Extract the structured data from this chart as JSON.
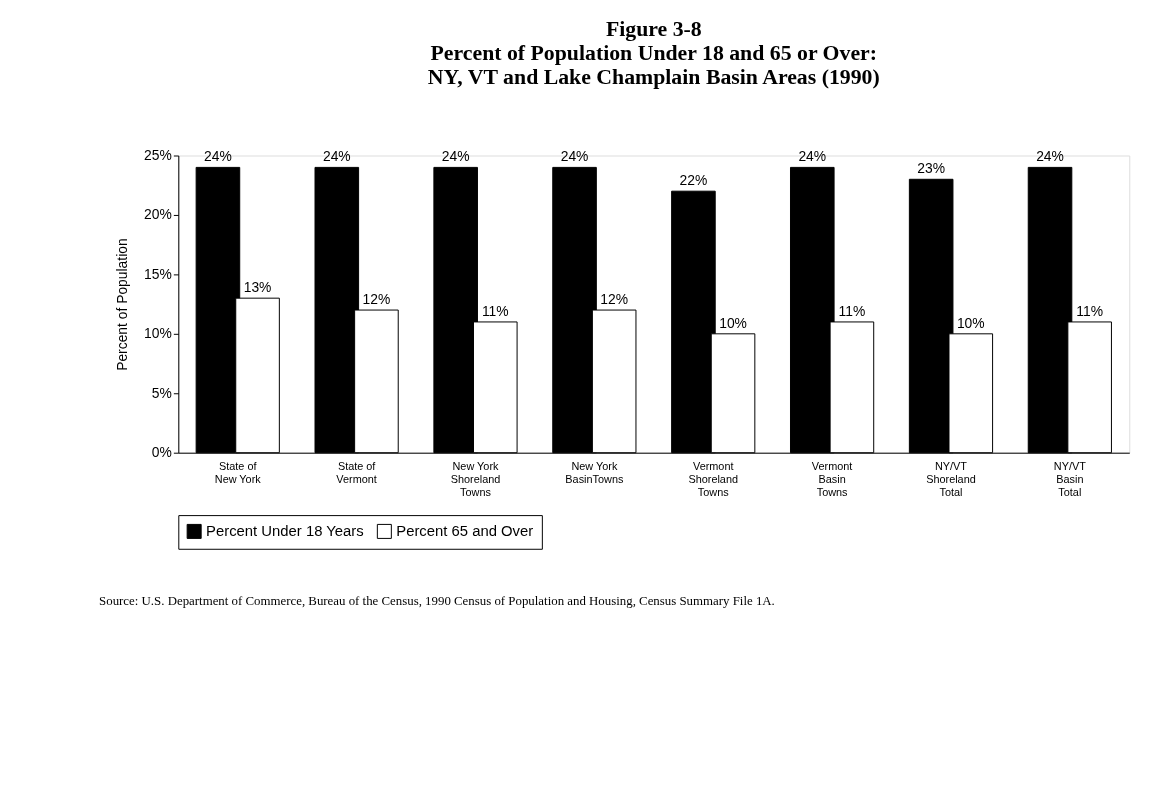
{
  "chart_data": {
    "type": "bar",
    "title": "Figure 3-8",
    "subtitle": "Percent of Population Under 18 and 65 or Over: NY, VT and Lake Champlain Basin Areas (1990)",
    "ylabel": "Percent of Population",
    "categories": [
      "State of New York",
      "State of Vermont",
      "New York Shoreland Towns",
      "New York BasinTowns",
      "Vermont Shoreland Towns",
      "Vermont Basin Towns",
      "NY/VT Shoreland Total",
      "NY/VT Basin Total"
    ],
    "series": [
      {
        "name": "Percent Under 18 Years",
        "color": "#000000",
        "values": [
          24,
          24,
          24,
          24,
          22,
          24,
          23,
          24
        ],
        "value_labels": [
          "24%",
          "24%",
          "24%",
          "24%",
          "22%",
          "24%",
          "23%",
          "24%"
        ]
      },
      {
        "name": "Percent 65 and Over",
        "color": "#ffffff",
        "values": [
          13,
          12,
          11,
          12,
          10,
          11,
          10,
          11
        ],
        "value_labels": [
          "13%",
          "12%",
          "11%",
          "12%",
          "10%",
          "11%",
          "10%",
          "11%"
        ]
      }
    ],
    "ylim": [
      0,
      25
    ],
    "yticks": [
      {
        "value": 0,
        "label": "0%"
      },
      {
        "value": 5,
        "label": "5%"
      },
      {
        "value": 10,
        "label": "10%"
      },
      {
        "value": 15,
        "label": "15%"
      },
      {
        "value": 20,
        "label": "20%"
      },
      {
        "value": 25,
        "label": "25%"
      }
    ],
    "grid": false,
    "legend": "bottom",
    "annotations": [
      "Source:   U.S. Department of Commerce, Bureau of the Census,  1990 Census of Population and Housing, Census Summary File  1A."
    ]
  }
}
